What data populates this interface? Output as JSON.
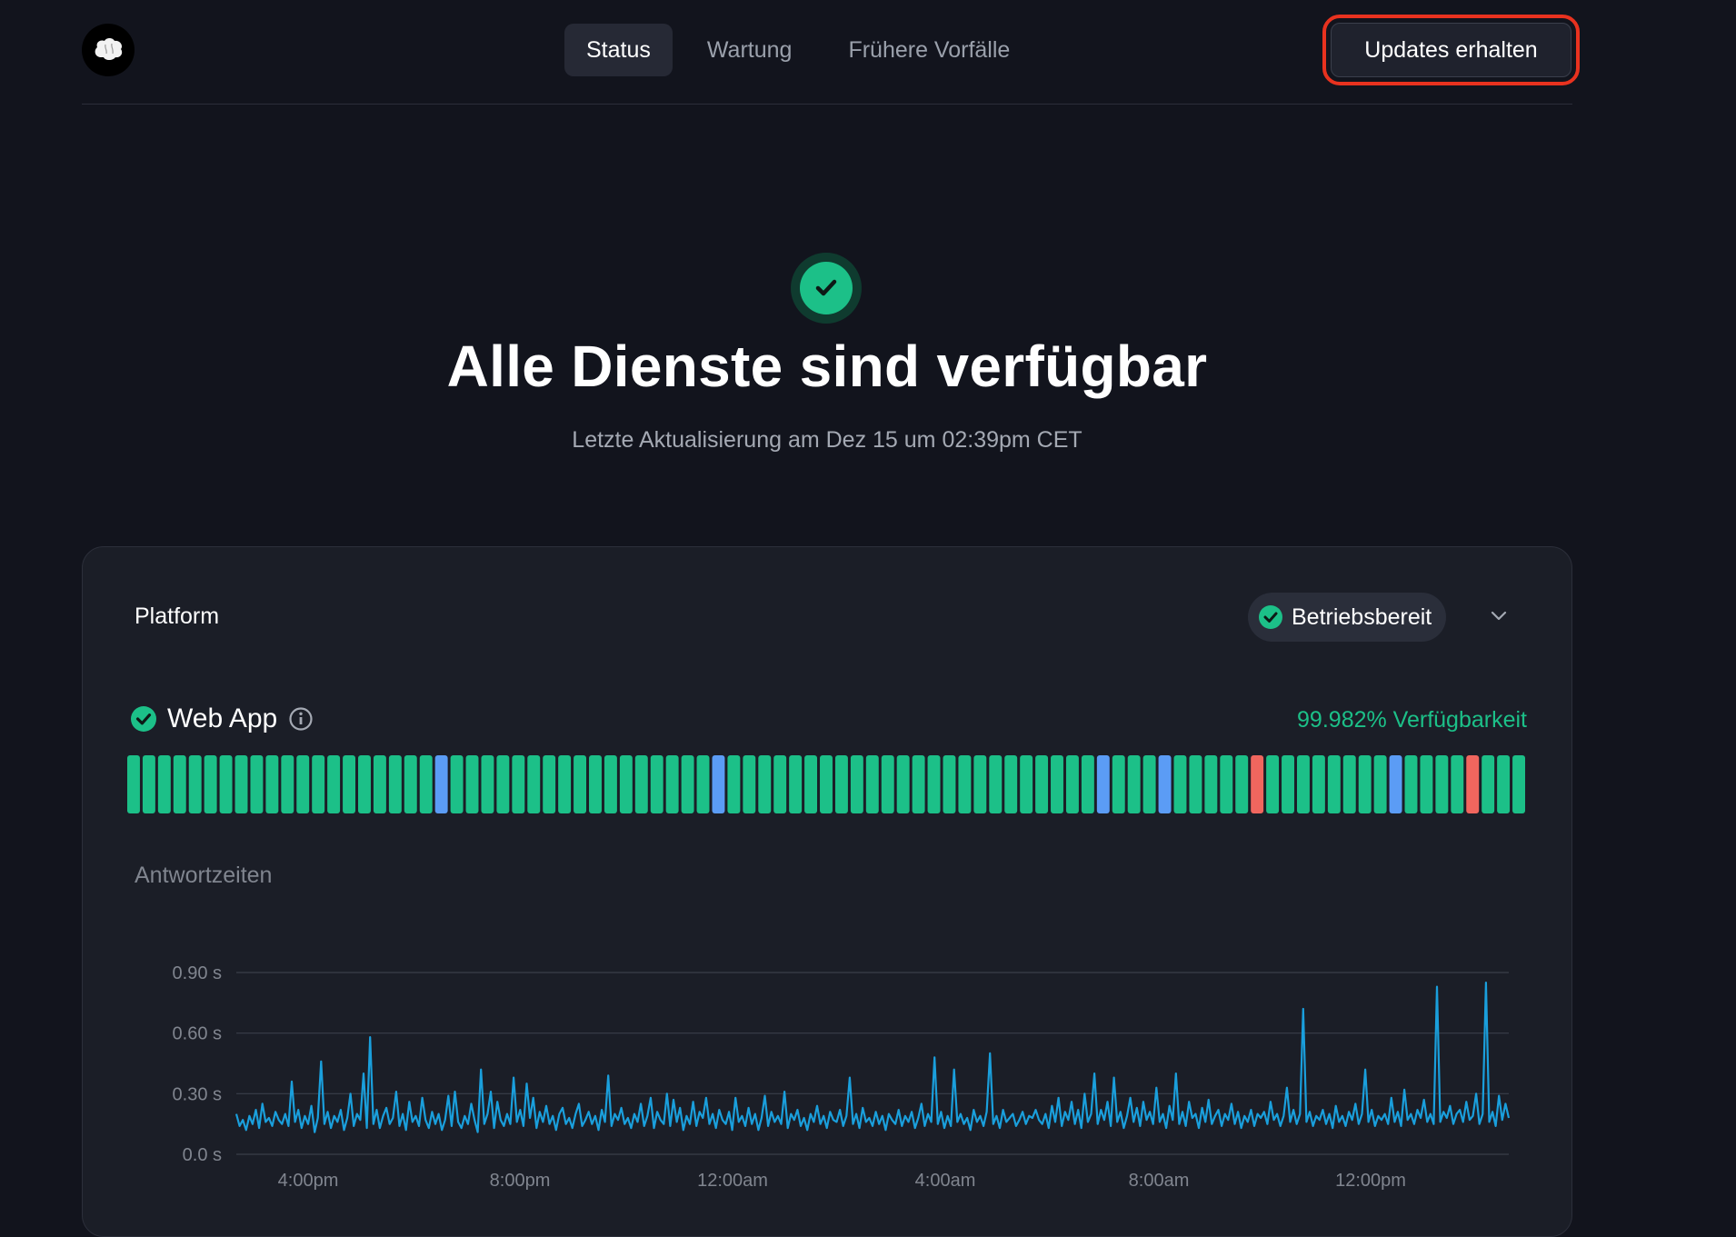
{
  "header": {
    "nav": [
      "Status",
      "Wartung",
      "Frühere Vorfälle"
    ],
    "active_nav": "Status",
    "updates_button": "Updates erhalten"
  },
  "hero": {
    "title": "Alle Dienste sind verfügbar",
    "subtitle": "Letzte Aktualisierung am Dez 15 um 02:39pm CET"
  },
  "platform": {
    "title": "Platform",
    "status": "Betriebsbereit",
    "component": {
      "name": "Web App",
      "uptime": "99.982% Verfügbarkeit",
      "days": "GGGGGGGGGGGGGGGGGGGGBGGGGGGGGGGGGGGGGGBGGGGGGGGGGGGGGGGGGGGGGGGBGGGBGGGGGRGGGGGGGGBGGGGRGGG",
      "day_colors": {
        "G": "#1cc088",
        "B": "#5b9cf5",
        "R": "#f0665e"
      }
    },
    "response_label": "Antwortzeiten"
  },
  "chart_data": {
    "type": "line",
    "title": "",
    "xlabel": "",
    "ylabel": "",
    "yticks": [
      "0.0 s",
      "0.30 s",
      "0.60 s",
      "0.90 s"
    ],
    "ylim": [
      0,
      0.9
    ],
    "xticks": [
      "4:00pm",
      "8:00pm",
      "12:00am",
      "4:00am",
      "8:00am",
      "12:00pm"
    ],
    "grid": true,
    "series": [
      {
        "color": "#1a9fdc",
        "values": [
          0.2,
          0.14,
          0.17,
          0.12,
          0.19,
          0.15,
          0.22,
          0.13,
          0.25,
          0.16,
          0.18,
          0.14,
          0.21,
          0.17,
          0.15,
          0.2,
          0.14,
          0.36,
          0.16,
          0.22,
          0.13,
          0.19,
          0.15,
          0.24,
          0.11,
          0.18,
          0.46,
          0.15,
          0.21,
          0.13,
          0.19,
          0.16,
          0.22,
          0.12,
          0.18,
          0.3,
          0.14,
          0.2,
          0.17,
          0.4,
          0.13,
          0.58,
          0.15,
          0.22,
          0.13,
          0.19,
          0.23,
          0.15,
          0.18,
          0.31,
          0.14,
          0.2,
          0.12,
          0.26,
          0.16,
          0.19,
          0.14,
          0.28,
          0.17,
          0.13,
          0.21,
          0.15,
          0.2,
          0.12,
          0.17,
          0.29,
          0.14,
          0.31,
          0.16,
          0.13,
          0.19,
          0.15,
          0.25,
          0.17,
          0.11,
          0.42,
          0.15,
          0.2,
          0.31,
          0.13,
          0.26,
          0.17,
          0.14,
          0.2,
          0.15,
          0.38,
          0.16,
          0.22,
          0.14,
          0.35,
          0.18,
          0.28,
          0.13,
          0.21,
          0.16,
          0.24,
          0.15,
          0.19,
          0.12,
          0.2,
          0.23,
          0.15,
          0.18,
          0.13,
          0.2,
          0.25,
          0.14,
          0.17,
          0.21,
          0.15,
          0.19,
          0.12,
          0.22,
          0.16,
          0.39,
          0.14,
          0.2,
          0.17,
          0.23,
          0.15,
          0.18,
          0.13,
          0.2,
          0.16,
          0.25,
          0.14,
          0.19,
          0.28,
          0.13,
          0.21,
          0.17,
          0.15,
          0.3,
          0.14,
          0.27,
          0.16,
          0.23,
          0.12,
          0.19,
          0.15,
          0.26,
          0.14,
          0.21,
          0.18,
          0.28,
          0.15,
          0.2,
          0.13,
          0.22,
          0.17,
          0.15,
          0.21,
          0.12,
          0.28,
          0.16,
          0.19,
          0.14,
          0.23,
          0.15,
          0.2,
          0.12,
          0.18,
          0.29,
          0.14,
          0.21,
          0.16,
          0.19,
          0.15,
          0.31,
          0.13,
          0.2,
          0.17,
          0.22,
          0.14,
          0.18,
          0.12,
          0.2,
          0.16,
          0.24,
          0.15,
          0.19,
          0.13,
          0.21,
          0.17,
          0.16,
          0.22,
          0.14,
          0.19,
          0.38,
          0.15,
          0.2,
          0.13,
          0.23,
          0.16,
          0.18,
          0.14,
          0.21,
          0.15,
          0.19,
          0.12,
          0.2,
          0.17,
          0.15,
          0.22,
          0.14,
          0.19,
          0.16,
          0.21,
          0.13,
          0.18,
          0.25,
          0.14,
          0.2,
          0.16,
          0.48,
          0.15,
          0.21,
          0.13,
          0.19,
          0.14,
          0.42,
          0.16,
          0.2,
          0.15,
          0.18,
          0.12,
          0.22,
          0.16,
          0.19,
          0.14,
          0.21,
          0.5,
          0.15,
          0.19,
          0.13,
          0.22,
          0.16,
          0.18,
          0.2,
          0.14,
          0.17,
          0.21,
          0.15,
          0.19,
          0.18,
          0.22,
          0.17,
          0.15,
          0.2,
          0.13,
          0.24,
          0.16,
          0.28,
          0.14,
          0.21,
          0.17,
          0.26,
          0.15,
          0.22,
          0.13,
          0.3,
          0.16,
          0.2,
          0.4,
          0.15,
          0.22,
          0.17,
          0.26,
          0.14,
          0.38,
          0.16,
          0.21,
          0.13,
          0.19,
          0.28,
          0.16,
          0.23,
          0.14,
          0.26,
          0.17,
          0.21,
          0.15,
          0.33,
          0.16,
          0.2,
          0.13,
          0.24,
          0.17,
          0.4,
          0.15,
          0.21,
          0.14,
          0.26,
          0.18,
          0.2,
          0.13,
          0.23,
          0.16,
          0.27,
          0.15,
          0.19,
          0.22,
          0.14,
          0.2,
          0.17,
          0.25,
          0.15,
          0.21,
          0.13,
          0.19,
          0.16,
          0.22,
          0.14,
          0.2,
          0.18,
          0.21,
          0.15,
          0.26,
          0.17,
          0.2,
          0.14,
          0.19,
          0.33,
          0.16,
          0.22,
          0.15,
          0.2,
          0.72,
          0.16,
          0.21,
          0.14,
          0.19,
          0.17,
          0.22,
          0.15,
          0.2,
          0.13,
          0.24,
          0.16,
          0.19,
          0.14,
          0.21,
          0.17,
          0.25,
          0.15,
          0.2,
          0.42,
          0.16,
          0.22,
          0.14,
          0.19,
          0.17,
          0.2,
          0.15,
          0.28,
          0.16,
          0.21,
          0.14,
          0.32,
          0.17,
          0.2,
          0.15,
          0.22,
          0.18,
          0.27,
          0.16,
          0.2,
          0.15,
          0.83,
          0.16,
          0.21,
          0.18,
          0.24,
          0.15,
          0.2,
          0.22,
          0.16,
          0.26,
          0.17,
          0.19,
          0.3,
          0.15,
          0.2,
          0.85,
          0.16,
          0.21,
          0.14,
          0.29,
          0.17,
          0.25,
          0.18
        ]
      }
    ]
  }
}
